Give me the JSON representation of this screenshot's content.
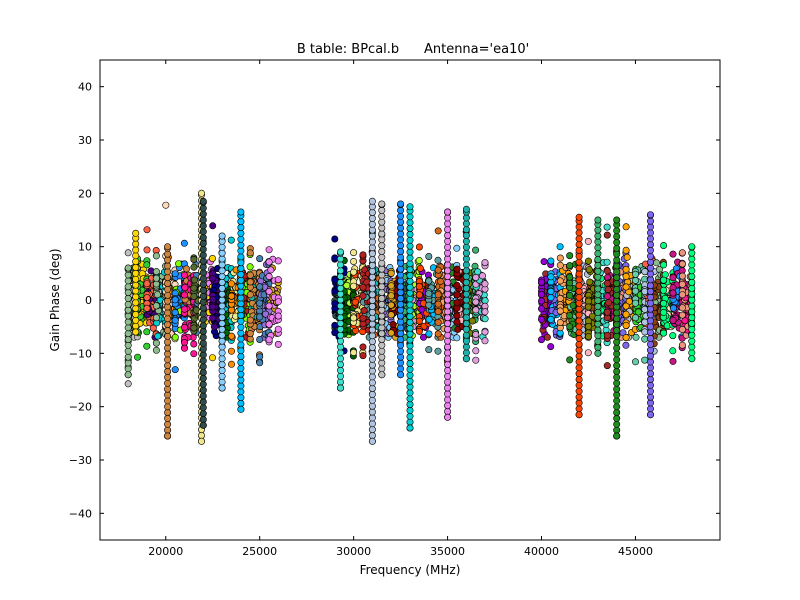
{
  "chart_data": {
    "type": "scatter",
    "title": "B table: BPcal.b      Antenna='ea10'",
    "xlabel": "Frequency (MHz)",
    "ylabel": "Gain Phase (deg)",
    "xlim": [
      16500,
      49500
    ],
    "ylim": [
      -45,
      45
    ],
    "xticks": [
      20000,
      25000,
      30000,
      35000,
      40000,
      45000
    ],
    "yticks": [
      -40,
      -30,
      -20,
      -10,
      0,
      10,
      20,
      30,
      40
    ],
    "grid": false,
    "legend": "none",
    "marker": "circle",
    "marker_edge_color": "#000000",
    "frequency_bands_mhz": [
      [
        18000,
        26000
      ],
      [
        29000,
        37000
      ],
      [
        40000,
        48000
      ]
    ],
    "spectral_windows": 48,
    "spw_width_mhz": 500,
    "typical_phase_spread_deg": [
      -7,
      8
    ],
    "series_colors": [
      "#c0c0c0",
      "#33cc33",
      "#ff6347",
      "#8fbc8f",
      "#ffdab9",
      "#1e90ff",
      "#ff1493",
      "#556b2f",
      "#ffd700",
      "#4b0082",
      "#00ced1",
      "#ff8c00",
      "#7fff00",
      "#cd853f",
      "#4682b4",
      "#ee82ee",
      "#000080",
      "#006400",
      "#f0e68c",
      "#b22222",
      "#20b2aa",
      "#9370db",
      "#daa520",
      "#2f4f4f",
      "#adff2f",
      "#ff4500",
      "#5f9ea0",
      "#d2691e",
      "#87cefa",
      "#8b0000",
      "#3cb371",
      "#dda0dd",
      "#9400d3",
      "#00bfff",
      "#f4a460",
      "#228b22",
      "#ffb6c1",
      "#808000",
      "#40e0d0",
      "#a52a2a",
      "#7b68ee",
      "#ffa500",
      "#66cdaa",
      "#b0c4de",
      "#8b4513",
      "#00ff7f",
      "#c71585",
      "#e9967a"
    ],
    "extremes": [
      {
        "x": 18000,
        "min": -14,
        "max": 6
      },
      {
        "x": 18400,
        "min": -6,
        "max": 12.5
      },
      {
        "x": 20100,
        "min": -25.5,
        "max": 10
      },
      {
        "x": 21900,
        "min": -26.5,
        "max": 20
      },
      {
        "x": 22000,
        "min": -23.5,
        "max": 18.5
      },
      {
        "x": 23000,
        "min": -16.5,
        "max": 12
      },
      {
        "x": 24000,
        "min": -20.5,
        "max": 16.5
      },
      {
        "x": 29300,
        "min": -16.5,
        "max": 9
      },
      {
        "x": 31000,
        "min": -26.5,
        "max": 18.5
      },
      {
        "x": 31500,
        "min": -14,
        "max": 18
      },
      {
        "x": 32500,
        "min": -14,
        "max": 18
      },
      {
        "x": 33000,
        "min": -24,
        "max": 17.5
      },
      {
        "x": 35000,
        "min": -22,
        "max": 16.5
      },
      {
        "x": 36000,
        "min": -11,
        "max": 17
      },
      {
        "x": 42000,
        "min": -21.5,
        "max": 15.5
      },
      {
        "x": 43000,
        "min": -10,
        "max": 15
      },
      {
        "x": 44000,
        "min": -25.5,
        "max": 15
      },
      {
        "x": 45800,
        "min": -21.5,
        "max": 16
      },
      {
        "x": 48000,
        "min": -11,
        "max": 10
      }
    ]
  }
}
